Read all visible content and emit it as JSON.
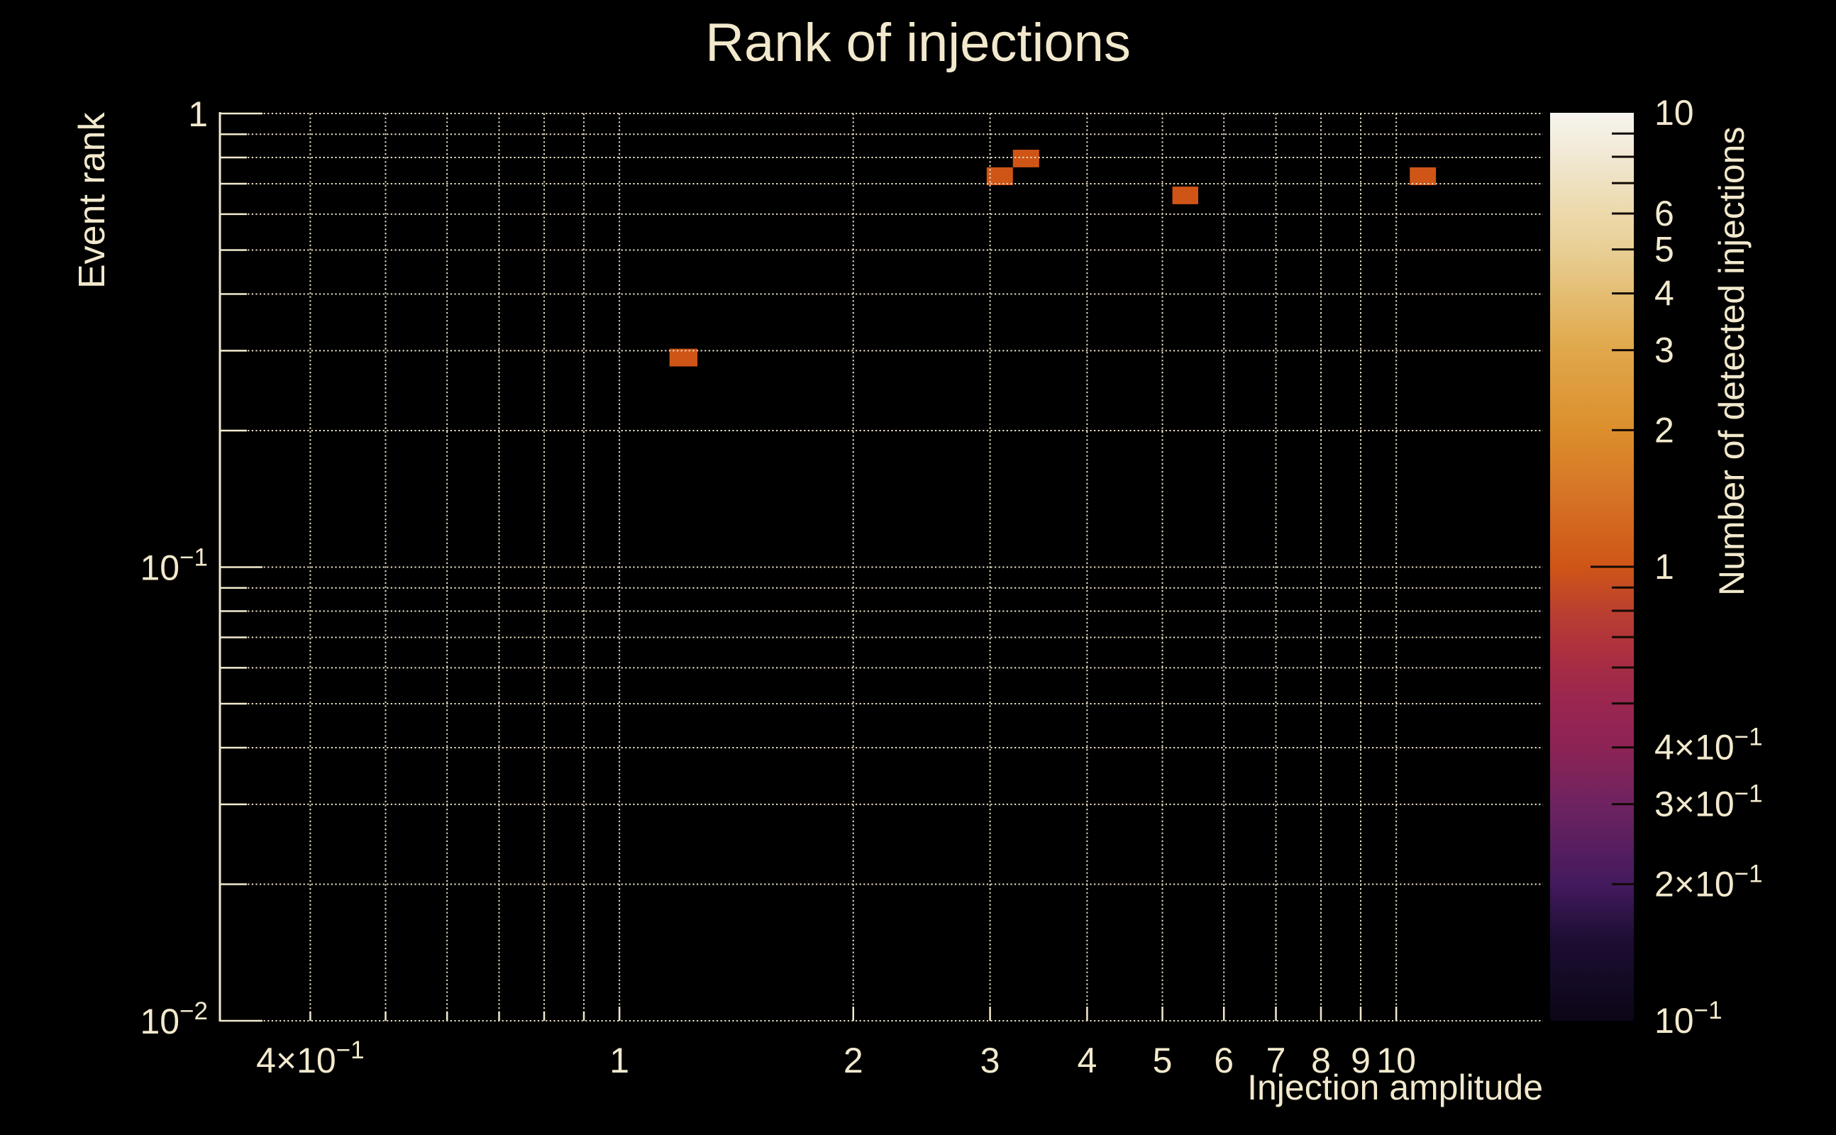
{
  "title": "Rank of injections",
  "colors": {
    "background": "#000000",
    "text": "#f2e9cd",
    "grid": "#eae1c5",
    "axis": "#f2e9cd",
    "colorbar_tick": "#120a05"
  },
  "chart_data": {
    "type": "heatmap",
    "title": "Rank of injections",
    "xlabel": "Injection amplitude",
    "ylabel": "Event rank",
    "zlabel": "Number of detected injections",
    "xscale": "log",
    "yscale": "log",
    "zscale": "log",
    "xlim": [
      0.306,
      15.45
    ],
    "ylim": [
      0.01,
      1.0
    ],
    "zlim": [
      0.1,
      10
    ],
    "grid": "dotted",
    "x_ticks": [
      {
        "v": 0.4,
        "t": "4×10",
        "e": "−1"
      },
      {
        "v": 0.5
      },
      {
        "v": 0.6
      },
      {
        "v": 0.7
      },
      {
        "v": 0.8
      },
      {
        "v": 0.9
      },
      {
        "v": 1,
        "t": "1",
        "major": true
      },
      {
        "v": 2,
        "t": "2",
        "major": true
      },
      {
        "v": 3,
        "t": "3",
        "major": true
      },
      {
        "v": 4,
        "t": "4",
        "major": true
      },
      {
        "v": 5,
        "t": "5",
        "major": true
      },
      {
        "v": 6,
        "t": "6",
        "major": true
      },
      {
        "v": 7,
        "t": "7",
        "major": true
      },
      {
        "v": 8,
        "t": "8",
        "major": true
      },
      {
        "v": 9,
        "t": "9",
        "major": true
      },
      {
        "v": 10,
        "t": "10",
        "major": true
      }
    ],
    "y_ticks": [
      {
        "v": 1,
        "t": "1",
        "major": true
      },
      {
        "v": 0.9
      },
      {
        "v": 0.8
      },
      {
        "v": 0.7
      },
      {
        "v": 0.6
      },
      {
        "v": 0.5
      },
      {
        "v": 0.4
      },
      {
        "v": 0.3
      },
      {
        "v": 0.2
      },
      {
        "v": 0.1,
        "t": "10",
        "e": "−1",
        "major": true
      },
      {
        "v": 0.09
      },
      {
        "v": 0.08
      },
      {
        "v": 0.07
      },
      {
        "v": 0.06
      },
      {
        "v": 0.05
      },
      {
        "v": 0.04
      },
      {
        "v": 0.03
      },
      {
        "v": 0.02
      },
      {
        "v": 0.01,
        "t": "10",
        "e": "−2",
        "major": true
      }
    ],
    "z_ticks": [
      {
        "v": 10,
        "t": "10"
      },
      {
        "v": 9
      },
      {
        "v": 8
      },
      {
        "v": 7
      },
      {
        "v": 6,
        "t": "6"
      },
      {
        "v": 5,
        "t": "5"
      },
      {
        "v": 4,
        "t": "4"
      },
      {
        "v": 3,
        "t": "3"
      },
      {
        "v": 2,
        "t": "2"
      },
      {
        "v": 1,
        "t": "1",
        "major": true
      },
      {
        "v": 0.9
      },
      {
        "v": 0.8
      },
      {
        "v": 0.7
      },
      {
        "v": 0.6
      },
      {
        "v": 0.5
      },
      {
        "v": 0.4,
        "t": "4×10",
        "e": "−1"
      },
      {
        "v": 0.3,
        "t": "3×10",
        "e": "−1"
      },
      {
        "v": 0.2,
        "t": "2×10",
        "e": "−1"
      },
      {
        "v": 0.1,
        "t": "10",
        "e": "−1"
      }
    ],
    "bins": [
      {
        "x0": 1.16,
        "x1": 1.26,
        "y0": 0.277,
        "y1": 0.303,
        "count": 1
      },
      {
        "x0": 2.97,
        "x1": 3.21,
        "y0": 0.695,
        "y1": 0.761,
        "count": 1
      },
      {
        "x0": 3.21,
        "x1": 3.47,
        "y0": 0.761,
        "y1": 0.832,
        "count": 1
      },
      {
        "x0": 5.15,
        "x1": 5.56,
        "y0": 0.631,
        "y1": 0.69,
        "count": 1
      },
      {
        "x0": 10.41,
        "x1": 11.25,
        "y0": 0.695,
        "y1": 0.761,
        "count": 1
      }
    ],
    "colormap": [
      {
        "pos": 0.0,
        "color": "#0c0617"
      },
      {
        "pos": 0.09,
        "color": "#1d0e33"
      },
      {
        "pos": 0.15,
        "color": "#431a5e"
      },
      {
        "pos": 0.24,
        "color": "#6f2360"
      },
      {
        "pos": 0.3,
        "color": "#8c2355"
      },
      {
        "pos": 0.35,
        "color": "#9a2650"
      },
      {
        "pos": 0.39,
        "color": "#a62c45"
      },
      {
        "pos": 0.42,
        "color": "#b1343a"
      },
      {
        "pos": 0.45,
        "color": "#ba3f30"
      },
      {
        "pos": 0.5,
        "color": "#cf5517"
      },
      {
        "pos": 0.58,
        "color": "#d67426"
      },
      {
        "pos": 0.65,
        "color": "#dc8e2c"
      },
      {
        "pos": 0.74,
        "color": "#e0a84b"
      },
      {
        "pos": 0.8,
        "color": "#e4bd72"
      },
      {
        "pos": 0.85,
        "color": "#e9cf96"
      },
      {
        "pos": 0.89,
        "color": "#ecd9ab"
      },
      {
        "pos": 0.95,
        "color": "#f1e8d2"
      },
      {
        "pos": 1.0,
        "color": "#f6f4ee"
      }
    ]
  }
}
